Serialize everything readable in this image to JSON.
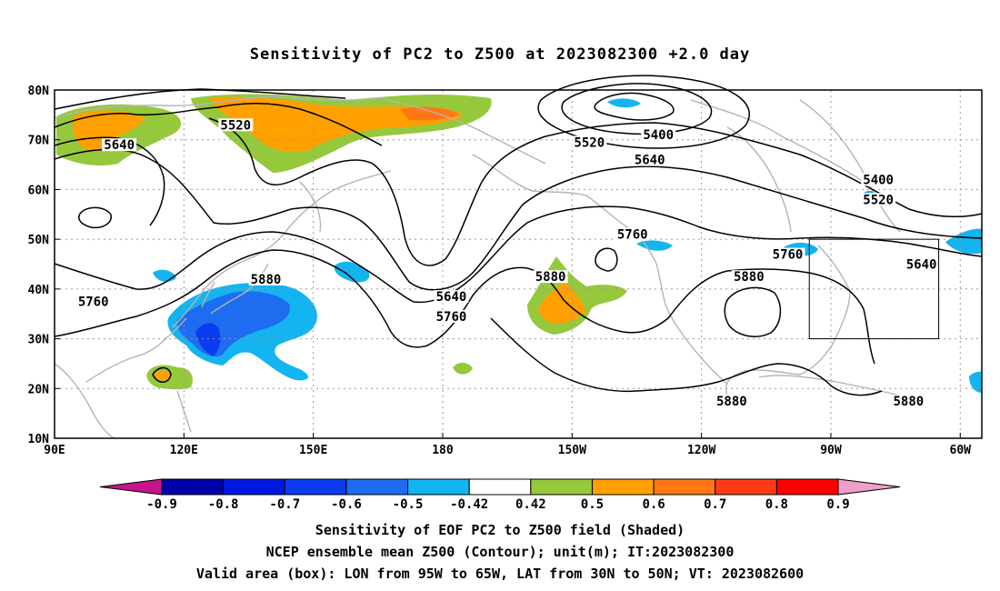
{
  "title": "Sensitivity of PC2 to Z500 at 2023082300 +2.0 day",
  "map": {
    "lon_range": [
      90,
      305
    ],
    "lat_range": [
      10,
      80
    ],
    "lat_labels": [
      {
        "lat": 80,
        "text": "80N"
      },
      {
        "lat": 70,
        "text": "70N"
      },
      {
        "lat": 60,
        "text": "60N"
      },
      {
        "lat": 50,
        "text": "50N"
      },
      {
        "lat": 40,
        "text": "40N"
      },
      {
        "lat": 30,
        "text": "30N"
      },
      {
        "lat": 20,
        "text": "20N"
      },
      {
        "lat": 10,
        "text": "10N"
      }
    ],
    "lon_labels": [
      {
        "lon": 90,
        "text": "90E"
      },
      {
        "lon": 120,
        "text": "120E"
      },
      {
        "lon": 150,
        "text": "150E"
      },
      {
        "lon": 180,
        "text": "180"
      },
      {
        "lon": 210,
        "text": "150W"
      },
      {
        "lon": 240,
        "text": "120W"
      },
      {
        "lon": 270,
        "text": "90W"
      },
      {
        "lon": 300,
        "text": "60W"
      }
    ],
    "gridline_lons": [
      120,
      150,
      180,
      210,
      240,
      270,
      300
    ],
    "gridline_lats": [
      20,
      30,
      40,
      50,
      60,
      70
    ],
    "contour_labels": [
      {
        "text": "5520",
        "lon": 132,
        "lat": 73
      },
      {
        "text": "5640",
        "lon": 105,
        "lat": 69
      },
      {
        "text": "5520",
        "lon": 214,
        "lat": 69.5
      },
      {
        "text": "5400",
        "lon": 230,
        "lat": 71
      },
      {
        "text": "5640",
        "lon": 228,
        "lat": 66
      },
      {
        "text": "5400",
        "lon": 281,
        "lat": 62
      },
      {
        "text": "5520",
        "lon": 281,
        "lat": 58
      },
      {
        "text": "5760",
        "lon": 224,
        "lat": 51
      },
      {
        "text": "5760",
        "lon": 260,
        "lat": 47
      },
      {
        "text": "5640",
        "lon": 291,
        "lat": 45
      },
      {
        "text": "5880",
        "lon": 139,
        "lat": 42
      },
      {
        "text": "5880",
        "lon": 205,
        "lat": 42.5
      },
      {
        "text": "5880",
        "lon": 251,
        "lat": 42.5
      },
      {
        "text": "5760",
        "lon": 99,
        "lat": 37.5
      },
      {
        "text": "5640",
        "lon": 182,
        "lat": 38.5
      },
      {
        "text": "5760",
        "lon": 182,
        "lat": 34.5
      },
      {
        "text": "5880",
        "lon": 247,
        "lat": 17.5
      },
      {
        "text": "5880",
        "lon": 288,
        "lat": 17.5
      }
    ],
    "valid_box": {
      "lon_min": 265,
      "lon_max": 295,
      "lat_min": 30,
      "lat_max": 50
    }
  },
  "colorbar": {
    "labels": [
      "-0.9",
      "-0.8",
      "-0.7",
      "-0.6",
      "-0.5",
      "-0.42",
      "0.42",
      "0.5",
      "0.6",
      "0.7",
      "0.8",
      "0.9"
    ],
    "colors": [
      "#0000a8",
      "#0018e0",
      "#0a3cf0",
      "#1e6cf0",
      "#14b4f0",
      "#ffffff",
      "#96c83c",
      "#ffa000",
      "#ff7814",
      "#ff3c14",
      "#ff0000"
    ],
    "low_end_color": "#c8148c",
    "high_end_color": "#f0a0c8"
  },
  "captions": [
    "Sensitivity of EOF PC2 to Z500 field (Shaded)",
    "NCEP ensemble mean Z500 (Contour); unit(m); IT:2023082300",
    "Valid area (box): LON from 95W to 65W, LAT from 30N to 50N; VT: 2023082600"
  ]
}
